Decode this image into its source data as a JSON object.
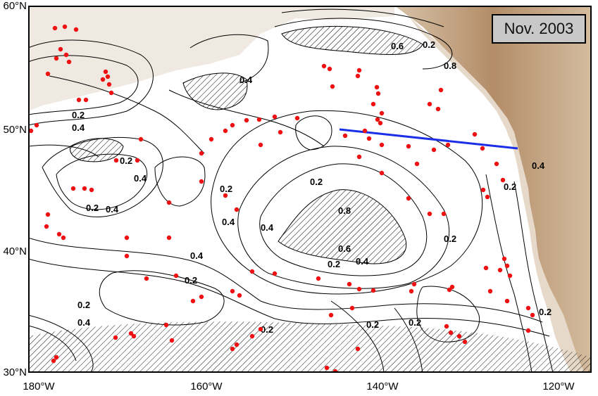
{
  "map": {
    "date_label": "Nov. 2003",
    "lat_labels": [
      "60°N",
      "50°N",
      "40°N",
      "30°N"
    ],
    "lon_labels": [
      "180°W",
      "160°W",
      "140°W",
      "120°W"
    ],
    "contour_labels": [
      "0.2",
      "0.4",
      "0.2",
      "0.4",
      "0.2",
      "0.4",
      "0.8",
      "0.6",
      "0.4",
      "0.2",
      "0.2",
      "0.4",
      "0.2",
      "0.4",
      "0.2",
      "0.4",
      "0.2",
      "0.2",
      "0.4",
      "0.2",
      "0.2",
      "0.2",
      "0.4",
      "0.2",
      "0.6",
      "0.8",
      "0.2",
      "0.4",
      "0.2"
    ],
    "colors": {
      "land": "#c7a987",
      "land_dark": "#a9805a",
      "coast": "#e3d8cc",
      "stations": "#ee1111",
      "transect": "#1b2ee8",
      "contour": "#000000"
    },
    "features": {
      "stations_marker": "red-dot",
      "transect_line": "blue-line"
    }
  }
}
